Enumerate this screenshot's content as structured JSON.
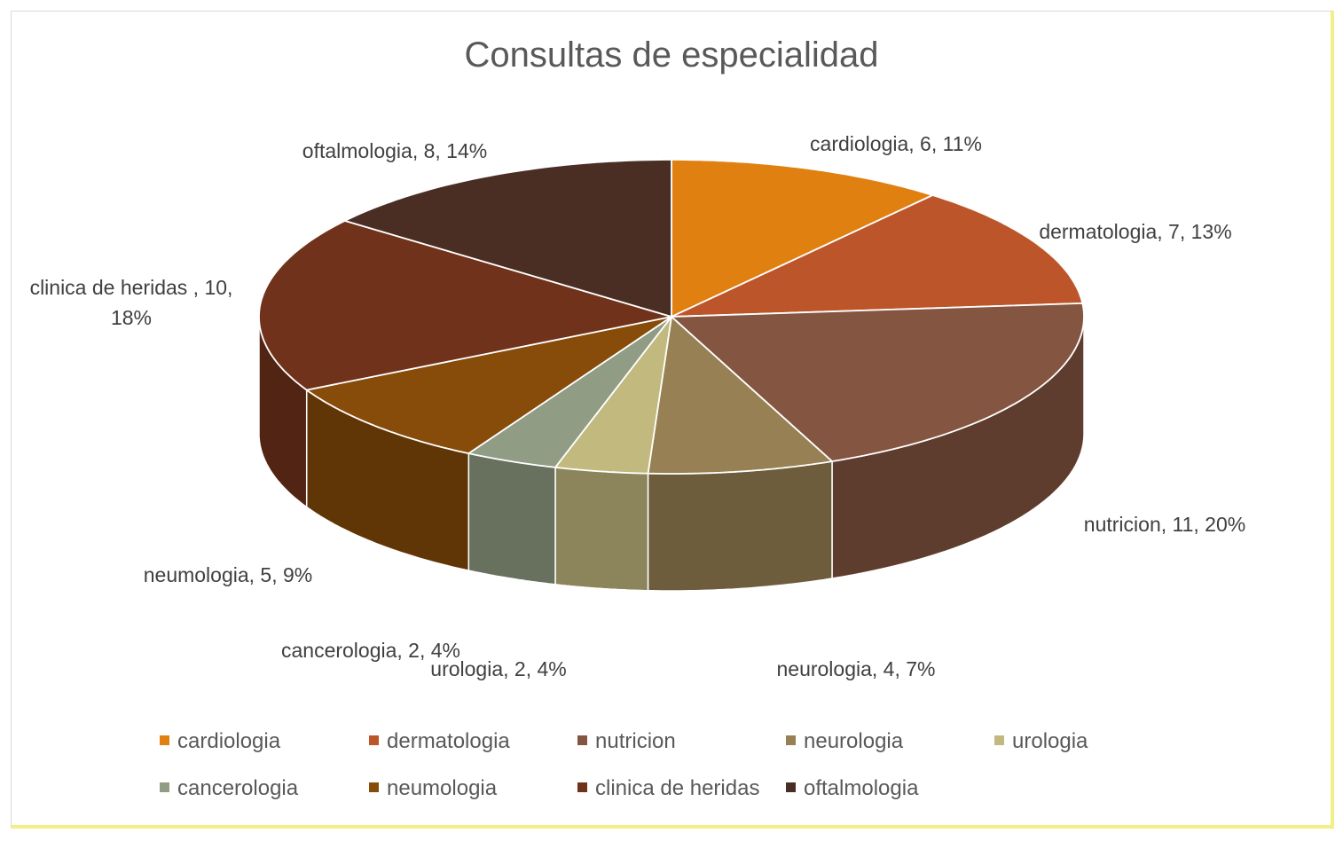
{
  "chart_data": {
    "type": "pie",
    "title": "Consultas de especialidad",
    "categories": [
      "cardiologia",
      "dermatologia",
      "nutricion",
      "neurologia",
      "urologia",
      "cancerologia",
      "neumologia",
      "clinica de heridas",
      "oftalmologia"
    ],
    "values": [
      6,
      7,
      11,
      4,
      2,
      2,
      5,
      10,
      8
    ],
    "percent_labels": [
      "11%",
      "13%",
      "20%",
      "7%",
      "4%",
      "4%",
      "9%",
      "18%",
      "14%"
    ],
    "data_labels": [
      "cardiologia, 6, 11%",
      "dermatologia, 7, 13%",
      "nutricion, 11, 20%",
      "neurologia, 4, 7%",
      "urologia, 2, 4%",
      "cancerologia, 2, 4%",
      "neumologia, 5, 9%",
      "clinica de heridas , 10,|18%",
      "oftalmologia, 8, 14%"
    ],
    "colors": [
      "#e08010",
      "#bc562a",
      "#845540",
      "#978154",
      "#c2b97e",
      "#909c83",
      "#874b0a",
      "#70321a",
      "#4a2e24"
    ],
    "legend_position": "bottom",
    "style": "3d-pie"
  }
}
